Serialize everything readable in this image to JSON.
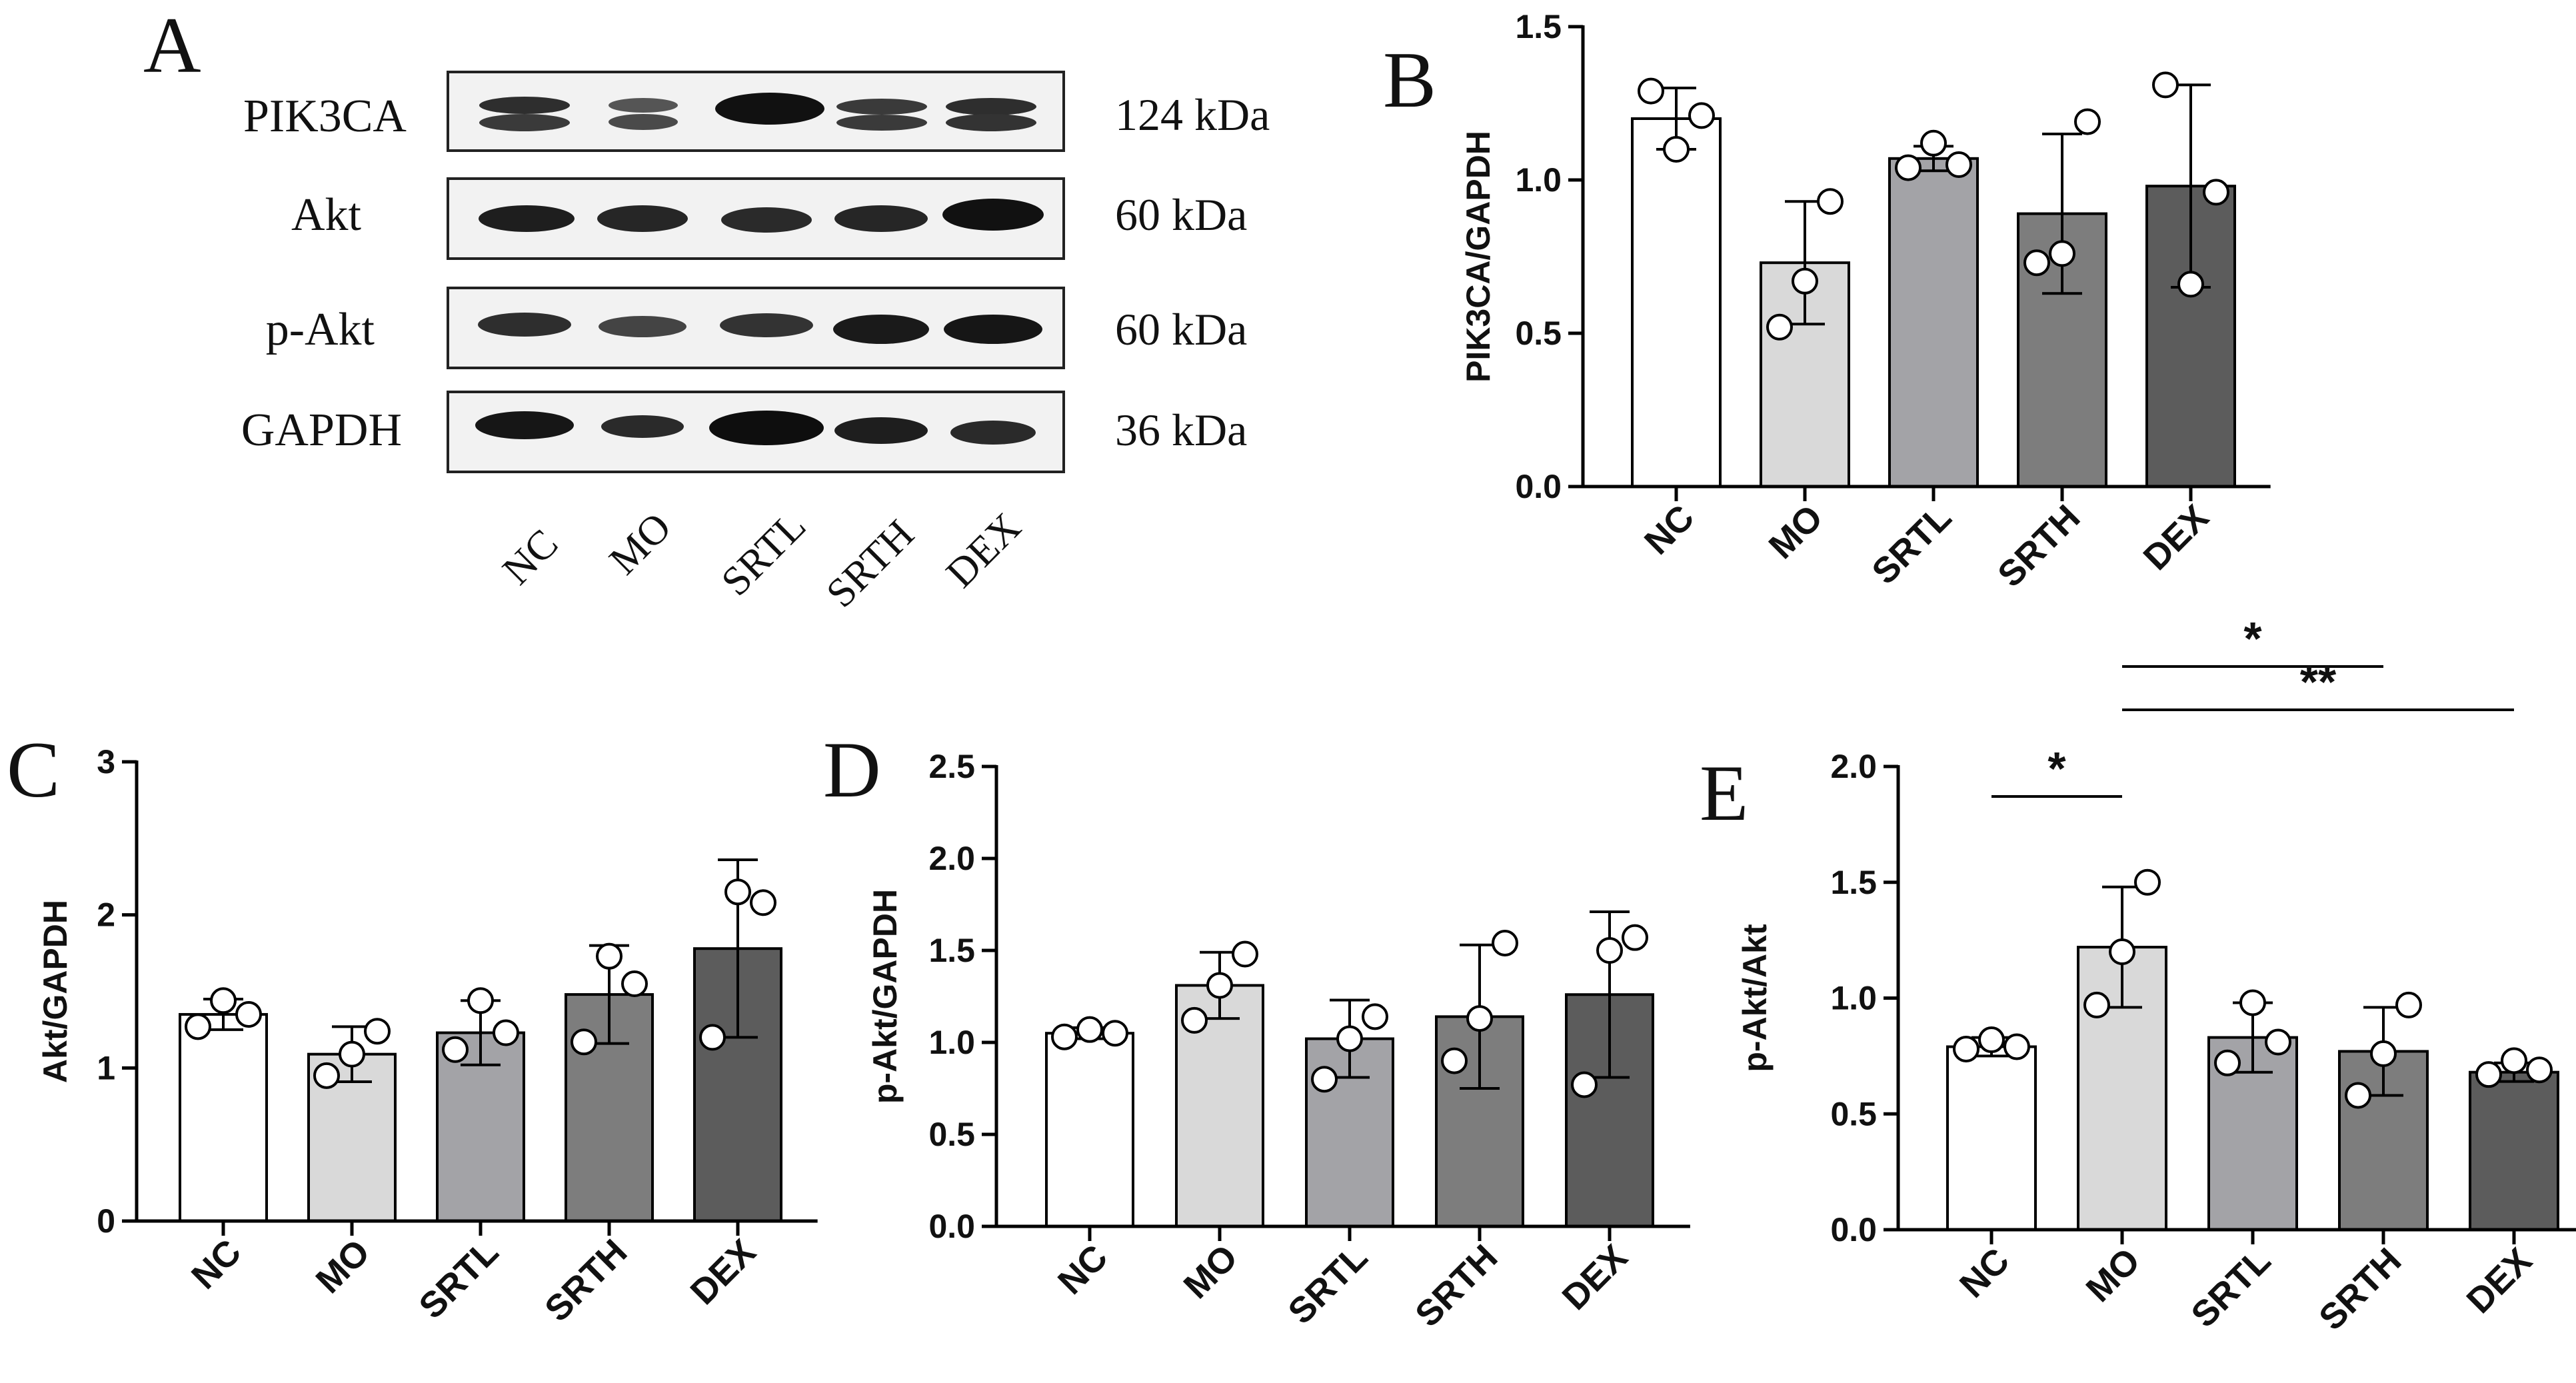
{
  "panel_a": {
    "label": "A",
    "rows": [
      {
        "protein": "PIK3CA",
        "size": "124 kDa"
      },
      {
        "protein": "Akt",
        "size": "60 kDa"
      },
      {
        "protein": "p-Akt",
        "size": "60 kDa"
      },
      {
        "protein": "GAPDH",
        "size": "36 kDa"
      }
    ],
    "lanes": [
      "NC",
      "MO",
      "SRTL",
      "SRTH",
      "DEX"
    ]
  },
  "colors": {
    "NC": "#ffffff",
    "MO": "#d9d9d9",
    "SRTL": "#a3a3a7",
    "SRTH": "#7d7d7d",
    "DEX": "#5c5c5c"
  },
  "chart_data": [
    {
      "panel": "B",
      "type": "bar",
      "categories": [
        "NC",
        "MO",
        "SRTL",
        "SRTH",
        "DEX"
      ],
      "values": [
        1.2,
        0.73,
        1.07,
        0.89,
        0.98
      ],
      "errors": [
        0.1,
        0.2,
        0.04,
        0.26,
        0.33
      ],
      "points": [
        [
          1.29,
          1.1,
          1.21
        ],
        [
          0.52,
          0.67,
          0.93
        ],
        [
          1.04,
          1.12,
          1.05
        ],
        [
          0.73,
          0.76,
          1.19
        ],
        [
          1.31,
          0.66,
          0.96
        ]
      ],
      "ylabel": "PIK3CA/GAPDH",
      "ylim": [
        0,
        1.5
      ],
      "yticks": [
        "0.0",
        "0.5",
        "1.0",
        "1.5"
      ],
      "significance": []
    },
    {
      "panel": "C",
      "type": "bar",
      "categories": [
        "NC",
        "MO",
        "SRTL",
        "SRTH",
        "DEX"
      ],
      "values": [
        1.35,
        1.09,
        1.23,
        1.48,
        1.78
      ],
      "errors": [
        0.1,
        0.18,
        0.21,
        0.32,
        0.58
      ],
      "points": [
        [
          1.27,
          1.44,
          1.35
        ],
        [
          0.95,
          1.09,
          1.24
        ],
        [
          1.12,
          1.44,
          1.23
        ],
        [
          1.17,
          1.73,
          1.55
        ],
        [
          1.2,
          2.15,
          2.08
        ]
      ],
      "ylabel": "Akt/GAPDH",
      "ylim": [
        0,
        3
      ],
      "yticks": [
        "0",
        "1",
        "2",
        "3"
      ],
      "significance": []
    },
    {
      "panel": "D",
      "type": "bar",
      "categories": [
        "NC",
        "MO",
        "SRTL",
        "SRTH",
        "DEX"
      ],
      "values": [
        1.05,
        1.31,
        1.02,
        1.14,
        1.26
      ],
      "errors": [
        0.03,
        0.18,
        0.21,
        0.39,
        0.45
      ],
      "points": [
        [
          1.03,
          1.07,
          1.05
        ],
        [
          1.12,
          1.31,
          1.48
        ],
        [
          0.8,
          1.02,
          1.14
        ],
        [
          0.9,
          1.13,
          1.54
        ],
        [
          0.77,
          1.5,
          1.57
        ]
      ],
      "ylabel": "p-Akt/GAPDH",
      "ylim": [
        0,
        2.5
      ],
      "yticks": [
        "0.0",
        "0.5",
        "1.0",
        "1.5",
        "2.0",
        "2.5"
      ],
      "significance": []
    },
    {
      "panel": "E",
      "type": "bar",
      "categories": [
        "NC",
        "MO",
        "SRTL",
        "SRTH",
        "DEX"
      ],
      "values": [
        0.79,
        1.22,
        0.83,
        0.77,
        0.68
      ],
      "errors": [
        0.04,
        0.26,
        0.15,
        0.19,
        0.04
      ],
      "points": [
        [
          0.78,
          0.82,
          0.79
        ],
        [
          0.97,
          1.2,
          1.5
        ],
        [
          0.72,
          0.98,
          0.81
        ],
        [
          0.58,
          0.76,
          0.97
        ],
        [
          0.67,
          0.73,
          0.69
        ]
      ],
      "ylabel": "p-Akt/Akt",
      "ylim": [
        0,
        2.0
      ],
      "yticks": [
        "0.0",
        "0.5",
        "1.0",
        "1.5",
        "2.0"
      ],
      "significance": [
        {
          "from": 0,
          "to": 1,
          "label": "*"
        },
        {
          "from": 1,
          "to": 3,
          "label": "*"
        },
        {
          "from": 1,
          "to": 4,
          "label": "**"
        }
      ]
    }
  ]
}
